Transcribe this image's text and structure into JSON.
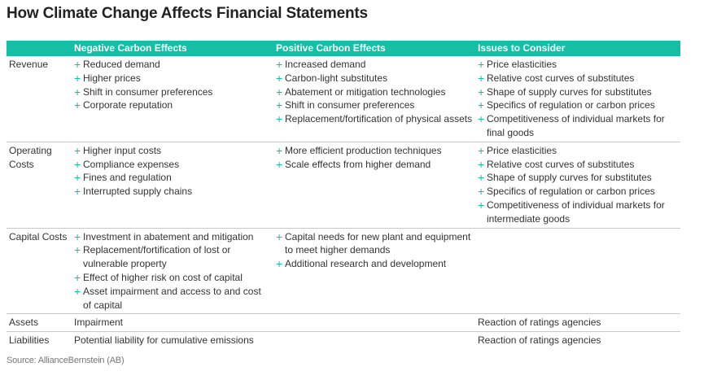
{
  "title": "How Climate Change Affects Financial Statements",
  "colors": {
    "accent": "#14bfa6"
  },
  "bullet_icon": "plus-icon",
  "headers": [
    "",
    "Negative Carbon Effects",
    "Positive Carbon Effects",
    "Issues to Consider"
  ],
  "rows": [
    {
      "label": "Revenue",
      "bulleted": true,
      "negative": [
        "Reduced demand",
        "Higher prices",
        "Shift in consumer preferences",
        "Corporate reputation"
      ],
      "positive": [
        "Increased demand",
        "Carbon-light substitutes",
        "Abatement or mitigation technologies",
        "Shift in consumer preferences",
        "Replacement/fortification of physical assets"
      ],
      "issues": [
        "Price elasticities",
        "Relative cost curves of substitutes",
        "Shape of supply curves for substitutes",
        "Specifics of regulation or carbon prices",
        "Competitiveness of individual markets for final goods"
      ]
    },
    {
      "label": "Operating Costs",
      "bulleted": true,
      "negative": [
        "Higher input costs",
        "Compliance expenses",
        "Fines and regulation",
        "Interrupted supply chains"
      ],
      "positive": [
        "More efficient production techniques",
        "Scale effects from higher demand"
      ],
      "issues": [
        "Price elasticities",
        "Relative cost curves of substitutes",
        "Shape of supply curves for substitutes",
        "Specifics of regulation or carbon prices",
        "Competitiveness of individual markets for intermediate goods"
      ]
    },
    {
      "label": "Capital Costs",
      "bulleted": true,
      "negative": [
        "Investment in abatement and mitigation",
        "Replacement/fortification of lost or vulnerable property",
        "Effect of higher risk on cost of capital",
        "Asset impairment and access to and cost of capital"
      ],
      "positive": [
        "Capital needs for new plant and equipment to meet higher demands",
        "Additional research and development"
      ],
      "issues": []
    },
    {
      "label": "Assets",
      "bulleted": false,
      "negative": [
        "Impairment"
      ],
      "positive": [],
      "issues": [
        "Reaction of ratings agencies"
      ]
    },
    {
      "label": "Liabilities",
      "bulleted": false,
      "negative": [
        "Potential liability for cumulative emissions"
      ],
      "positive": [],
      "issues": [
        "Reaction of ratings agencies"
      ]
    }
  ],
  "source": "Source: AllianceBernstein (AB)"
}
